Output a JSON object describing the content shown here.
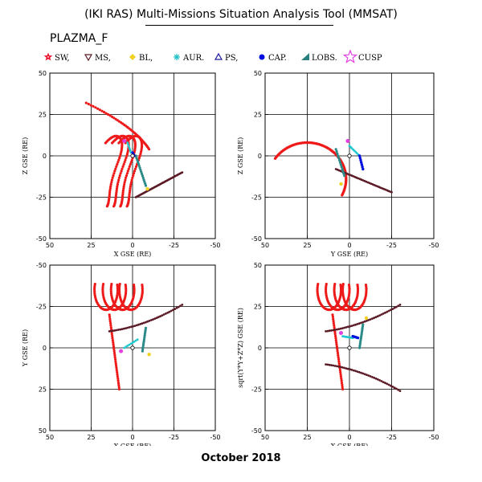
{
  "header": {
    "title": "(IKI RAS) Multi-Missions Situation Analysis Tool (MMSAT)",
    "subtitle": "PLAZMA_F",
    "footer": "October 2018"
  },
  "legend": [
    {
      "label": "SW,",
      "marker": "star-small",
      "color": "#e8102a"
    },
    {
      "label": "MS,",
      "marker": "triangle-down",
      "color": "#5a1a26"
    },
    {
      "label": "BL,",
      "marker": "diamond",
      "color": "#f0d020"
    },
    {
      "label": "AUR.",
      "marker": "asterisk",
      "color": "#20c0c8"
    },
    {
      "label": "PS,",
      "marker": "triangle-up",
      "color": "#1a1a9a"
    },
    {
      "label": "CAP.",
      "marker": "dot",
      "color": "#0010e0"
    },
    {
      "label": "LOBS.",
      "marker": "wedge",
      "color": "#2a8080"
    },
    {
      "label": "CUSP",
      "marker": "star-large",
      "color": "#e040e0"
    }
  ],
  "colors": {
    "solar_wind": "#ee1a1a",
    "magnetosheath": "#5a1a26",
    "aurora": "#20c8d0",
    "cap": "#0010e0",
    "lobes": "#2a8a88",
    "cusp": "#e040e0",
    "boundary_layer": "#f0d020"
  },
  "chart_data": [
    {
      "type": "scatter",
      "xlabel": "X GSE (RE)",
      "ylabel": "Z GSE (RE)",
      "xlim": [
        50,
        -50
      ],
      "ylim": [
        -50,
        50
      ],
      "xticks": [
        50,
        25,
        0,
        -25,
        -50
      ],
      "yticks": [
        -50,
        -25,
        0,
        25,
        50
      ],
      "yticks_direction": "up",
      "grid": true
    },
    {
      "type": "scatter",
      "xlabel": "Y GSE (RE)",
      "ylabel": "Z GSE (RE)",
      "xlim": [
        50,
        -50
      ],
      "ylim": [
        -50,
        50
      ],
      "xticks": [
        50,
        25,
        0,
        -25,
        -50
      ],
      "yticks": [
        -50,
        -25,
        0,
        25,
        50
      ],
      "yticks_direction": "up",
      "grid": true
    },
    {
      "type": "scatter",
      "xlabel": "X GSE (RE)",
      "ylabel": "Y GSE (RE)",
      "xlim": [
        50,
        -50
      ],
      "ylim": [
        50,
        -50
      ],
      "xticks": [
        50,
        25,
        0,
        -25,
        -50
      ],
      "yticks": [
        -50,
        -25,
        0,
        25,
        50
      ],
      "yticks_direction": "down",
      "grid": true
    },
    {
      "type": "scatter",
      "xlabel": "X GSE (RE)",
      "ylabel": "sqrt(Y*Y+Z*Z) GSE (RE)",
      "xlim": [
        50,
        -50
      ],
      "ylim": [
        -50,
        50
      ],
      "xticks": [
        50,
        25,
        0,
        -25,
        -50
      ],
      "yticks": [
        -50,
        -25,
        0,
        25,
        50
      ],
      "yticks_direction": "up",
      "grid": true
    }
  ]
}
